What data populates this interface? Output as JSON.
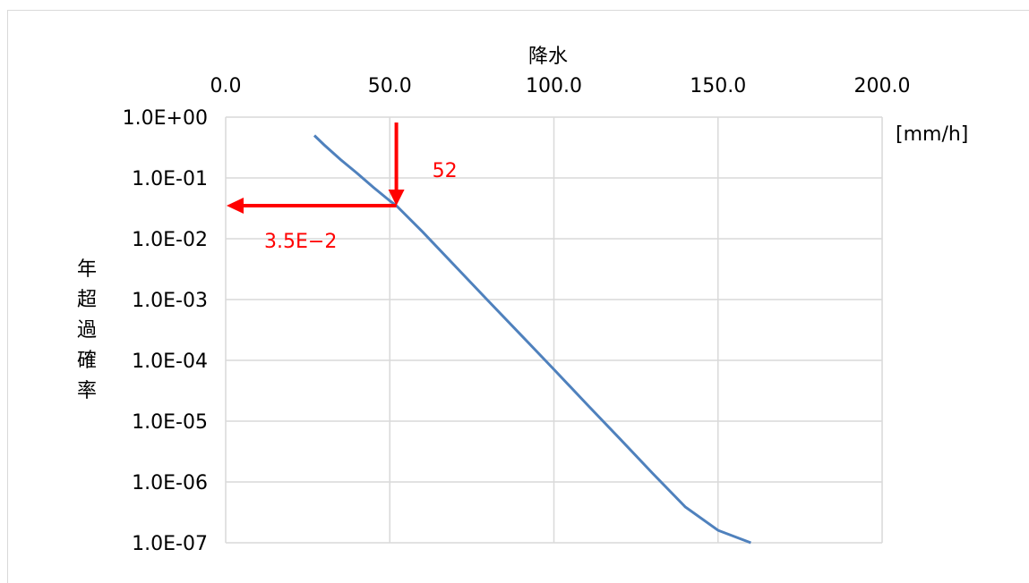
{
  "chart_data": {
    "type": "line",
    "title": "",
    "xlabel": "降水",
    "x_unit": "[mm/h]",
    "ylabel": "年超過確率",
    "x_axis_position": "top",
    "xlim": [
      0,
      200
    ],
    "x_ticks": [
      0,
      50,
      100,
      150,
      200
    ],
    "x_tick_labels": [
      "0.0",
      "50.0",
      "100.0",
      "150.0",
      "200.0"
    ],
    "y_scale": "log",
    "ylim": [
      1e-07,
      1
    ],
    "y_ticks": [
      1,
      0.1,
      0.01,
      0.001,
      0.0001,
      1e-05,
      1e-06,
      1e-07
    ],
    "y_tick_labels": [
      "1.0E+00",
      "1.0E-01",
      "1.0E-02",
      "1.0E-03",
      "1.0E-04",
      "1.0E-05",
      "1.0E-06",
      "1.0E-07"
    ],
    "grid": true,
    "line_color": "#4f81bd",
    "annotation_color": "#ff0000",
    "series": [
      {
        "x": [
          27,
          30,
          35,
          40,
          45,
          50,
          52,
          60,
          70,
          80,
          90,
          100,
          110,
          120,
          130,
          140,
          150,
          160
        ],
        "y": [
          0.5,
          0.35,
          0.2,
          0.12,
          0.07,
          0.042,
          0.035,
          0.013,
          0.0035,
          0.00095,
          0.00026,
          7.1e-05,
          1.9e-05,
          5.2e-06,
          1.4e-06,
          3.9e-07,
          1.6e-07,
          1e-07
        ]
      }
    ],
    "annotations": [
      {
        "label": "52",
        "x": 52,
        "direction": "down"
      },
      {
        "label": "3.5E−2",
        "y": 0.035,
        "direction": "left"
      }
    ]
  }
}
